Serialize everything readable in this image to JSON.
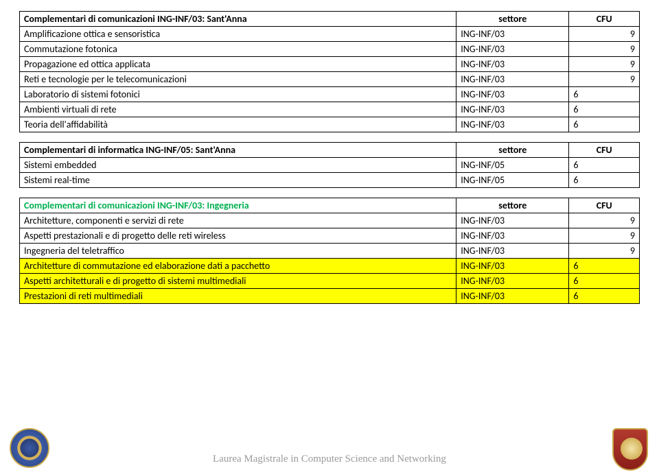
{
  "table1": {
    "header": {
      "title": "Complementari di comunicazioni ING-INF/03: Sant'Anna",
      "settore": "settore",
      "cfu": "CFU"
    },
    "rows": [
      {
        "name": "Amplificazione ottica e sensoristica",
        "set": "ING-INF/03",
        "cfu": "9",
        "align": "right"
      },
      {
        "name": "Commutazione fotonica",
        "set": "ING-INF/03",
        "cfu": "9",
        "align": "right"
      },
      {
        "name": "Propagazione ed ottica applicata",
        "set": "ING-INF/03",
        "cfu": "9",
        "align": "right"
      },
      {
        "name": "Reti e tecnologie per le telecomunicazioni",
        "set": "ING-INF/03",
        "cfu": "9",
        "align": "right"
      },
      {
        "name": "Laboratorio di sistemi fotonici",
        "set": "ING-INF/03",
        "cfu": "6",
        "align": "left"
      },
      {
        "name": "Ambienti virtuali di rete",
        "set": "ING-INF/03",
        "cfu": "6",
        "align": "left"
      },
      {
        "name": "Teoria dell'affidabilità",
        "set": "ING-INF/03",
        "cfu": "6",
        "align": "left"
      }
    ]
  },
  "table2": {
    "header": {
      "title": "Complementari di informatica ING-INF/05: Sant'Anna",
      "settore": "settore",
      "cfu": "CFU"
    },
    "rows": [
      {
        "name": "Sistemi embedded",
        "set": "ING-INF/05",
        "cfu": "6",
        "align": "left"
      },
      {
        "name": "Sistemi real-time",
        "set": "ING-INF/05",
        "cfu": "6",
        "align": "left"
      }
    ]
  },
  "table3": {
    "header": {
      "title": "Complementari di comunicazioni ING-INF/03: Ingegneria",
      "settore": "settore",
      "cfu": "CFU"
    },
    "rows": [
      {
        "name": "Architetture, componenti e servizi di rete",
        "set": "ING-INF/03",
        "cfu": "9",
        "align": "right",
        "hl": false
      },
      {
        "name": "Aspetti prestazionali e di progetto delle reti wireless",
        "set": "ING-INF/03",
        "cfu": "9",
        "align": "right",
        "hl": false
      },
      {
        "name": "Ingegneria del teletraffico",
        "set": "ING-INF/03",
        "cfu": "9",
        "align": "right",
        "hl": false
      },
      {
        "name": "Architetture di commutazione ed elaborazione dati a pacchetto",
        "set": "ING-INF/03",
        "cfu": "6",
        "align": "left",
        "hl": true
      },
      {
        "name": "Aspetti architetturali e di progetto di sistemi multimediali",
        "set": "ING-INF/03",
        "cfu": "6",
        "align": "left",
        "hl": true
      },
      {
        "name": "Prestazioni di reti multimediali",
        "set": "ING-INF/03",
        "cfu": "6",
        "align": "left",
        "hl": true
      }
    ]
  },
  "footer": "Laurea Magistrale in Computer Science and Networking"
}
